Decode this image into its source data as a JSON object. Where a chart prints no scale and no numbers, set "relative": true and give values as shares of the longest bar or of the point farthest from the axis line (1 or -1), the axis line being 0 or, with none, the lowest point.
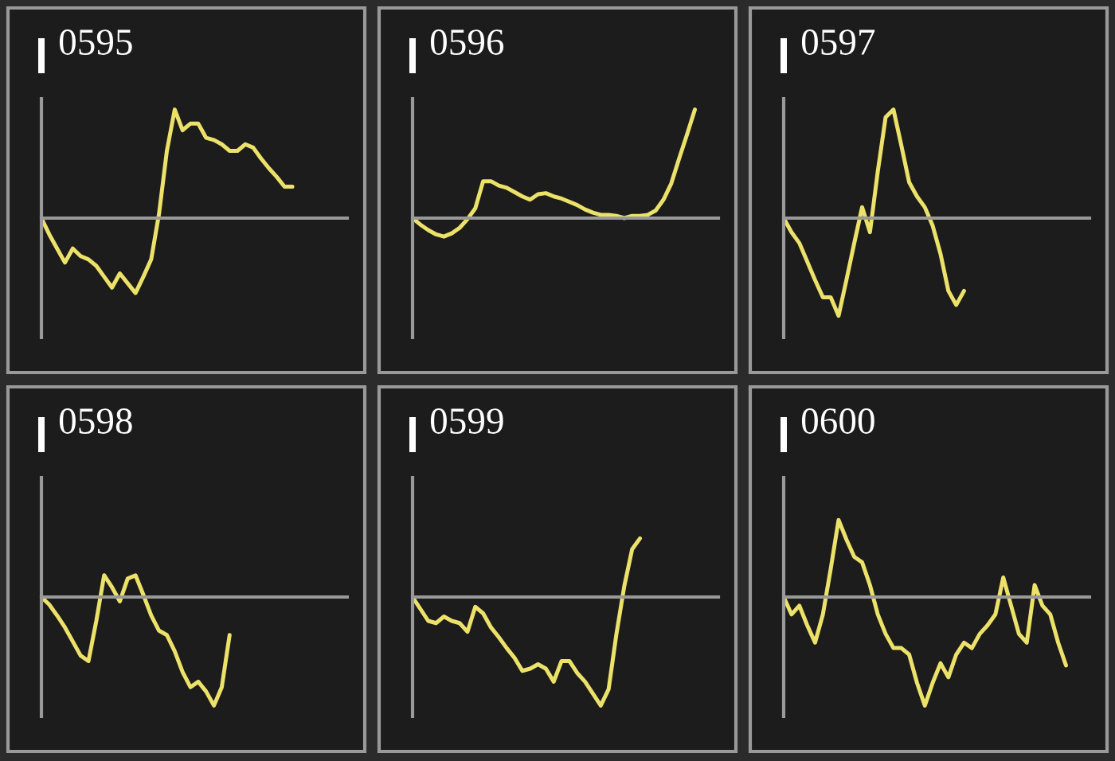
{
  "chart_data": [
    {
      "type": "line",
      "title": "0595",
      "relative": true,
      "color": "#ece26a",
      "categories": [
        null,
        null,
        null,
        null,
        null,
        null,
        null,
        null,
        null,
        null,
        null,
        null,
        null,
        null,
        null,
        null,
        null,
        null,
        null,
        null,
        null,
        null,
        null,
        null,
        null,
        null,
        null,
        null,
        null,
        null,
        null,
        null,
        null,
        null,
        null,
        null,
        null,
        null,
        null,
        null
      ],
      "values": [
        0,
        -0.15,
        -0.28,
        -0.41,
        -0.28,
        -0.35,
        -0.38,
        -0.44,
        -0.54,
        -0.64,
        -0.51,
        -0.6,
        -0.69,
        -0.54,
        -0.38,
        0.04,
        0.62,
        1,
        0.81,
        0.87,
        0.87,
        0.74,
        0.72,
        0.68,
        0.62,
        0.62,
        0.68,
        0.65,
        0.55,
        0.46,
        0.38,
        0.29,
        0.29,
        null,
        null,
        null,
        null,
        null,
        null,
        null
      ]
    },
    {
      "type": "line",
      "title": "0596",
      "relative": true,
      "color": "#ece26a",
      "categories": [
        null,
        null,
        null,
        null,
        null,
        null,
        null,
        null,
        null,
        null,
        null,
        null,
        null,
        null,
        null,
        null,
        null,
        null,
        null,
        null,
        null,
        null,
        null,
        null,
        null,
        null,
        null,
        null,
        null,
        null,
        null,
        null,
        null,
        null,
        null,
        null,
        null,
        null,
        null,
        null
      ],
      "values": [
        0,
        -0.06,
        -0.11,
        -0.15,
        -0.17,
        -0.14,
        -0.09,
        -0.01,
        0.09,
        0.34,
        0.34,
        0.3,
        0.28,
        0.24,
        0.2,
        0.17,
        0.22,
        0.23,
        0.2,
        0.18,
        0.15,
        0.12,
        0.08,
        0.05,
        0.03,
        0.03,
        0.02,
        0,
        0.02,
        0.02,
        0.03,
        0.07,
        0.17,
        0.32,
        0.55,
        0.77,
        1,
        null,
        null,
        null
      ]
    },
    {
      "type": "line",
      "title": "0597",
      "relative": true,
      "color": "#ece26a",
      "categories": [
        null,
        null,
        null,
        null,
        null,
        null,
        null,
        null,
        null,
        null,
        null,
        null,
        null,
        null,
        null,
        null,
        null,
        null,
        null,
        null,
        null,
        null,
        null,
        null,
        null,
        null,
        null,
        null,
        null,
        null,
        null,
        null,
        null,
        null,
        null,
        null,
        null,
        null,
        null,
        null
      ],
      "values": [
        0,
        -0.13,
        -0.23,
        -0.4,
        -0.57,
        -0.73,
        -0.73,
        -0.9,
        -0.57,
        -0.23,
        0.1,
        -0.13,
        0.43,
        0.93,
        1,
        0.67,
        0.33,
        0.2,
        0.1,
        -0.07,
        -0.33,
        -0.67,
        -0.8,
        -0.67,
        null,
        null,
        null,
        null,
        null,
        null,
        null,
        null,
        null,
        null,
        null,
        null,
        null,
        null,
        null,
        null
      ]
    },
    {
      "type": "line",
      "title": "0598",
      "relative": true,
      "color": "#ece26a",
      "categories": [
        null,
        null,
        null,
        null,
        null,
        null,
        null,
        null,
        null,
        null,
        null,
        null,
        null,
        null,
        null,
        null,
        null,
        null,
        null,
        null,
        null,
        null,
        null,
        null,
        null,
        null,
        null,
        null,
        null,
        null,
        null,
        null,
        null,
        null,
        null,
        null,
        null,
        null,
        null,
        null
      ],
      "values": [
        0,
        -0.07,
        -0.17,
        -0.28,
        -0.41,
        -0.54,
        -0.59,
        -0.22,
        0.2,
        0.09,
        -0.04,
        0.17,
        0.2,
        0.02,
        -0.17,
        -0.31,
        -0.35,
        -0.5,
        -0.69,
        -0.83,
        -0.78,
        -0.87,
        -1,
        -0.83,
        -0.35,
        null,
        null,
        null,
        null,
        null,
        null,
        null,
        null,
        null,
        null,
        null,
        null,
        null,
        null,
        null
      ]
    },
    {
      "type": "line",
      "title": "0599",
      "relative": true,
      "color": "#ece26a",
      "categories": [
        null,
        null,
        null,
        null,
        null,
        null,
        null,
        null,
        null,
        null,
        null,
        null,
        null,
        null,
        null,
        null,
        null,
        null,
        null,
        null,
        null,
        null,
        null,
        null,
        null,
        null,
        null,
        null,
        null,
        null,
        null,
        null,
        null,
        null,
        null,
        null,
        null,
        null,
        null,
        null
      ],
      "values": [
        0,
        -0.11,
        -0.22,
        -0.24,
        -0.18,
        -0.22,
        -0.24,
        -0.32,
        -0.09,
        -0.15,
        -0.28,
        -0.37,
        -0.47,
        -0.56,
        -0.68,
        -0.66,
        -0.62,
        -0.66,
        -0.78,
        -0.59,
        -0.59,
        -0.7,
        -0.78,
        -0.89,
        -1,
        -0.85,
        -0.34,
        0.1,
        0.44,
        0.54,
        null,
        null,
        null,
        null,
        null,
        null,
        null,
        null,
        null,
        null
      ]
    },
    {
      "type": "line",
      "title": "0600",
      "relative": true,
      "color": "#ece26a",
      "categories": [
        null,
        null,
        null,
        null,
        null,
        null,
        null,
        null,
        null,
        null,
        null,
        null,
        null,
        null,
        null,
        null,
        null,
        null,
        null,
        null,
        null,
        null,
        null,
        null,
        null,
        null,
        null,
        null,
        null,
        null,
        null,
        null,
        null,
        null,
        null,
        null,
        null,
        null,
        null,
        null
      ],
      "values": [
        0,
        -0.16,
        -0.08,
        -0.26,
        -0.42,
        -0.16,
        0.26,
        0.71,
        0.53,
        0.37,
        0.32,
        0.11,
        -0.16,
        -0.34,
        -0.47,
        -0.47,
        -0.53,
        -0.79,
        -1,
        -0.79,
        -0.61,
        -0.74,
        -0.53,
        -0.42,
        -0.47,
        -0.34,
        -0.26,
        -0.16,
        0.18,
        -0.08,
        -0.34,
        -0.42,
        0.11,
        -0.08,
        -0.16,
        -0.42,
        -0.63,
        null,
        null,
        null
      ]
    }
  ]
}
